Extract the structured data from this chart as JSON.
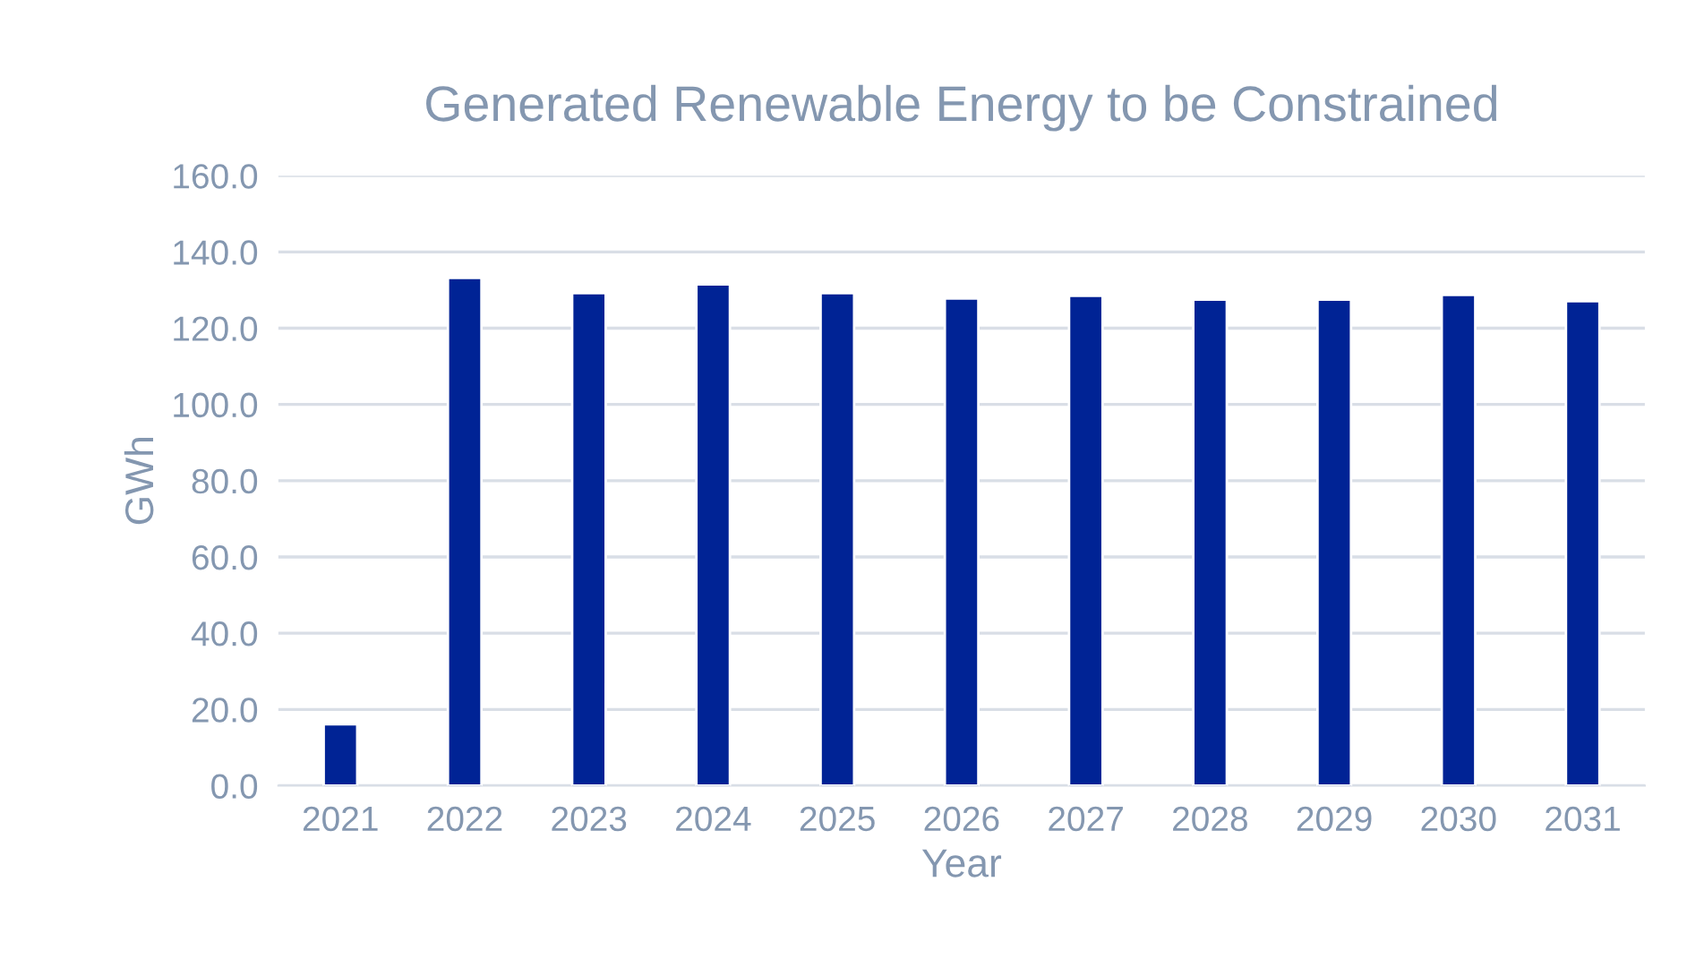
{
  "chart_data": {
    "type": "bar",
    "title": "Generated Renewable Energy to be Constrained",
    "xlabel": "Year",
    "ylabel": "GWh",
    "categories": [
      "2021",
      "2022",
      "2023",
      "2024",
      "2025",
      "2026",
      "2027",
      "2028",
      "2029",
      "2030",
      "2031"
    ],
    "values": [
      16.1,
      133.2,
      129.2,
      131.5,
      129.2,
      127.8,
      128.5,
      127.5,
      127.5,
      128.7,
      127.1
    ],
    "color": "#002395",
    "ylim": [
      0,
      160
    ],
    "yticks": [
      {
        "value": 0,
        "label": "0.0"
      },
      {
        "value": 20,
        "label": "20.0"
      },
      {
        "value": 40,
        "label": "40.0"
      },
      {
        "value": 60,
        "label": "60.0"
      },
      {
        "value": 80,
        "label": "80.0"
      },
      {
        "value": 100,
        "label": "100.0"
      },
      {
        "value": 120,
        "label": "120.0"
      },
      {
        "value": 140,
        "label": "140.0"
      },
      {
        "value": 160,
        "label": "160.0"
      }
    ],
    "grid": "y"
  }
}
